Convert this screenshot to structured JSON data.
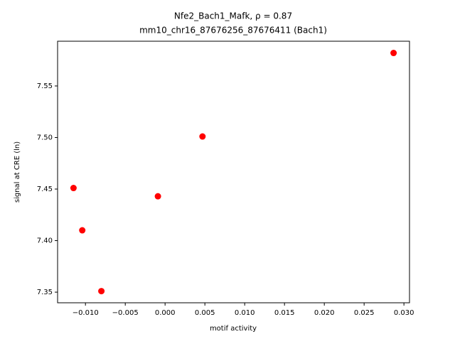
{
  "chart_data": {
    "type": "scatter",
    "title": [
      "Nfe2_Bach1_Mafk, ρ = 0.87",
      "mm10_chr16_87676256_87676411 (Bach1)"
    ],
    "x_label": "motif activity",
    "y_label": "signal at CRE (ln)",
    "color": "#ff0000",
    "series": [
      {
        "x": [
          0.0287,
          0.0047,
          -0.0009,
          -0.0115,
          -0.0104,
          -0.008
        ],
        "values": [
          7.582,
          7.501,
          7.443,
          7.451,
          7.41,
          7.351
        ]
      }
    ],
    "xlim": [
      -0.0135,
      0.0307
    ],
    "ylim": [
      7.3397,
      7.5934
    ],
    "xticks": [
      {
        "value": -0.01,
        "label": "−0.010"
      },
      {
        "value": -0.005,
        "label": "−0.005"
      },
      {
        "value": 0,
        "label": "0.000"
      },
      {
        "value": 0.005,
        "label": "0.005"
      },
      {
        "value": 0.01,
        "label": "0.010"
      },
      {
        "value": 0.015,
        "label": "0.015"
      },
      {
        "value": 0.02,
        "label": "0.020"
      },
      {
        "value": 0.025,
        "label": "0.025"
      },
      {
        "value": 0.03,
        "label": "0.030"
      }
    ],
    "yticks": [
      {
        "value": 7.35,
        "label": "7.35"
      },
      {
        "value": 7.4,
        "label": "7.40"
      },
      {
        "value": 7.45,
        "label": "7.45"
      },
      {
        "value": 7.5,
        "label": "7.50"
      },
      {
        "value": 7.55,
        "label": "7.55"
      }
    ],
    "grid": false
  }
}
